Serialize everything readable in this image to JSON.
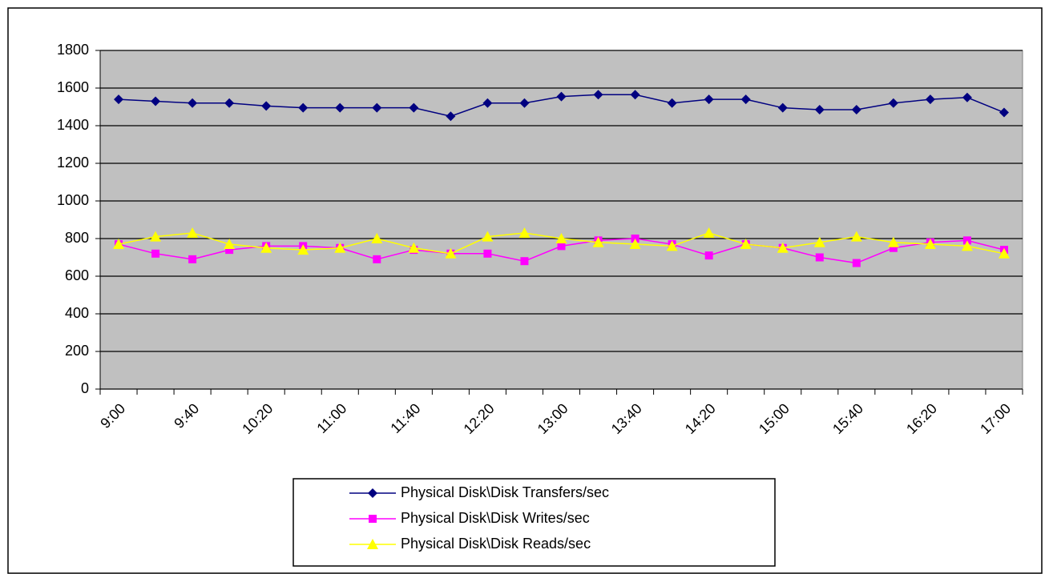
{
  "chart_data": {
    "type": "line",
    "categories": [
      "9:00",
      null,
      "9:40",
      null,
      "10:20",
      null,
      "11:00",
      null,
      "11:40",
      null,
      "12:20",
      null,
      "13:00",
      null,
      "13:40",
      null,
      "14:20",
      null,
      "15:00",
      null,
      "15:40",
      null,
      "16:20",
      null,
      "17:00"
    ],
    "series": [
      {
        "name": "Physical Disk\\Disk Transfers/sec",
        "color": "#000080",
        "marker": "diamond",
        "values": [
          1540,
          1530,
          1520,
          1520,
          1505,
          1495,
          1495,
          1495,
          1495,
          1450,
          1520,
          1520,
          1555,
          1565,
          1565,
          1520,
          1540,
          1540,
          1495,
          1485,
          1485,
          1520,
          1540,
          1550,
          1470
        ]
      },
      {
        "name": "Physical Disk\\Disk Writes/sec",
        "color": "#ff00ff",
        "marker": "square",
        "values": [
          770,
          720,
          690,
          740,
          760,
          760,
          750,
          690,
          740,
          720,
          720,
          680,
          760,
          790,
          800,
          770,
          710,
          770,
          750,
          700,
          670,
          750,
          780,
          790,
          740
        ]
      },
      {
        "name": "Physical Disk\\Disk Reads/sec",
        "color": "#ffff00",
        "marker": "triangle",
        "values": [
          770,
          810,
          830,
          770,
          750,
          740,
          750,
          800,
          750,
          720,
          810,
          830,
          800,
          780,
          770,
          760,
          830,
          770,
          750,
          780,
          810,
          780,
          770,
          760,
          720
        ]
      }
    ],
    "ylim": [
      0,
      1800
    ],
    "yticks": [
      0,
      200,
      400,
      600,
      800,
      1000,
      1200,
      1400,
      1600,
      1800
    ],
    "grid": true,
    "legend": "bottom"
  }
}
